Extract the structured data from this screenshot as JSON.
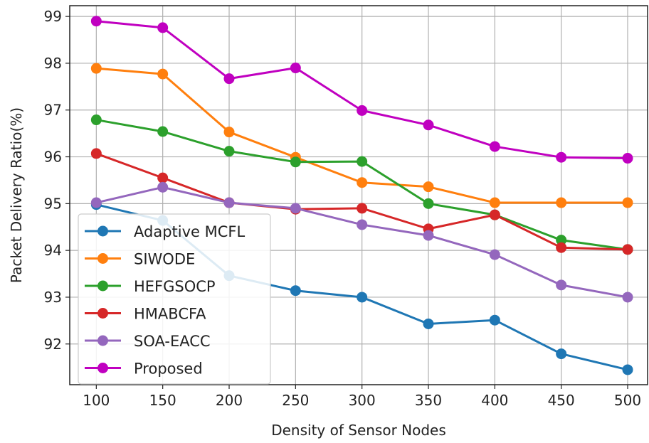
{
  "chart_data": {
    "type": "line",
    "title": "",
    "xlabel": "Density of Sensor Nodes",
    "ylabel": "Packet Delivery Ratio(%)",
    "x": [
      100,
      150,
      200,
      250,
      300,
      350,
      400,
      450,
      500
    ],
    "xticks": [
      "100",
      "150",
      "200",
      "250",
      "300",
      "350",
      "400",
      "450",
      "500"
    ],
    "yticks": [
      "92",
      "93",
      "94",
      "95",
      "96",
      "97",
      "98",
      "99"
    ],
    "xlim": [
      80,
      515
    ],
    "ylim": [
      91.13,
      99.23
    ],
    "grid": true,
    "legend_position": "lower-left",
    "series": [
      {
        "name": "Adaptive MCFL",
        "color": "#1f77b4",
        "values": [
          94.98,
          94.64,
          93.46,
          93.14,
          93.0,
          92.43,
          92.51,
          91.79,
          91.45
        ]
      },
      {
        "name": "SIWODE",
        "color": "#ff7f0e",
        "values": [
          97.89,
          97.77,
          96.53,
          95.99,
          95.45,
          95.36,
          95.02,
          95.02,
          95.02
        ]
      },
      {
        "name": "HEFGSOCP",
        "color": "#2ca02c",
        "values": [
          96.79,
          96.54,
          96.12,
          95.89,
          95.9,
          95.0,
          94.76,
          94.22,
          94.02
        ]
      },
      {
        "name": "HMABCFA",
        "color": "#d62728",
        "values": [
          96.07,
          95.55,
          95.02,
          94.88,
          94.9,
          94.46,
          94.76,
          94.06,
          94.02
        ]
      },
      {
        "name": "SOA-EACC",
        "color": "#9467bd",
        "values": [
          95.02,
          95.35,
          95.02,
          94.9,
          94.55,
          94.32,
          93.91,
          93.26,
          93.0
        ]
      },
      {
        "name": "Proposed",
        "color": "#c000c0",
        "values": [
          98.9,
          98.76,
          97.67,
          97.9,
          96.99,
          96.68,
          96.22,
          95.99,
          95.97
        ]
      }
    ]
  }
}
